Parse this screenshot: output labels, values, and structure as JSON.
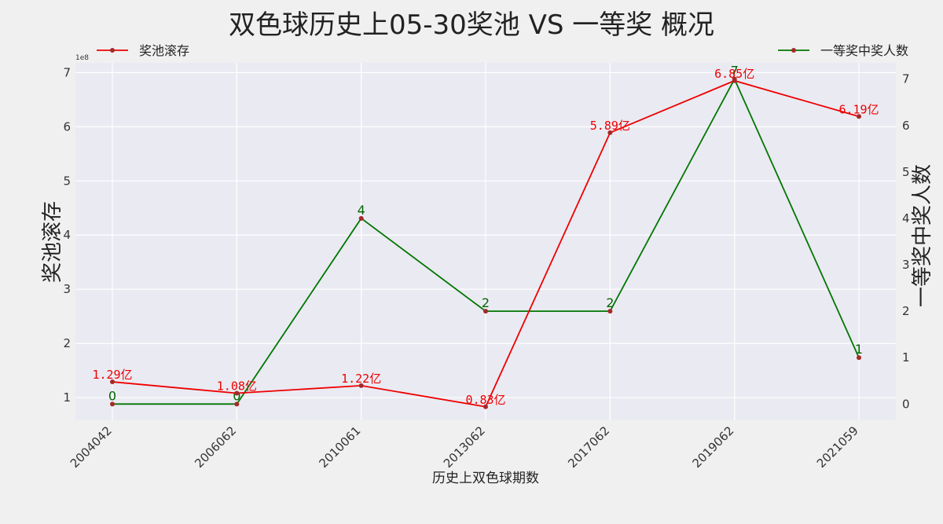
{
  "chart_data": {
    "type": "line",
    "title": "双色球历史上05-30奖池 VS 一等奖 概况",
    "xlabel": "历史上双色球期数",
    "ylabel_left": "奖池滚存",
    "ylabel_right": "一等奖中奖人数",
    "left_offset_label": "1e8",
    "categories": [
      "2004042",
      "2006062",
      "2010061",
      "2013062",
      "2017062",
      "2019062",
      "2021059"
    ],
    "ylim_left": [
      0.58,
      7.18
    ],
    "ylim_right": [
      -0.35,
      7.35
    ],
    "yticks_left": [
      1,
      2,
      3,
      4,
      5,
      6,
      7
    ],
    "yticks_right": [
      0,
      1,
      2,
      3,
      4,
      5,
      6,
      7
    ],
    "grid": true,
    "series": [
      {
        "name": "奖池滚存",
        "axis": "left",
        "color": "#ee0000",
        "values": [
          1.29,
          1.08,
          1.22,
          0.83,
          5.89,
          6.85,
          6.19
        ],
        "labels": [
          "1.29亿",
          "1.08亿",
          "1.22亿",
          "0.83亿",
          "5.89亿",
          "6.85亿",
          "6.19亿"
        ],
        "legend_position": "top-left"
      },
      {
        "name": "一等奖中奖人数",
        "axis": "right",
        "color": "#007700",
        "values": [
          0,
          0,
          4,
          2,
          2,
          7,
          1
        ],
        "labels": [
          "0",
          "0",
          "4",
          "2",
          "2",
          "7",
          "1"
        ],
        "legend_position": "top-right"
      }
    ]
  }
}
